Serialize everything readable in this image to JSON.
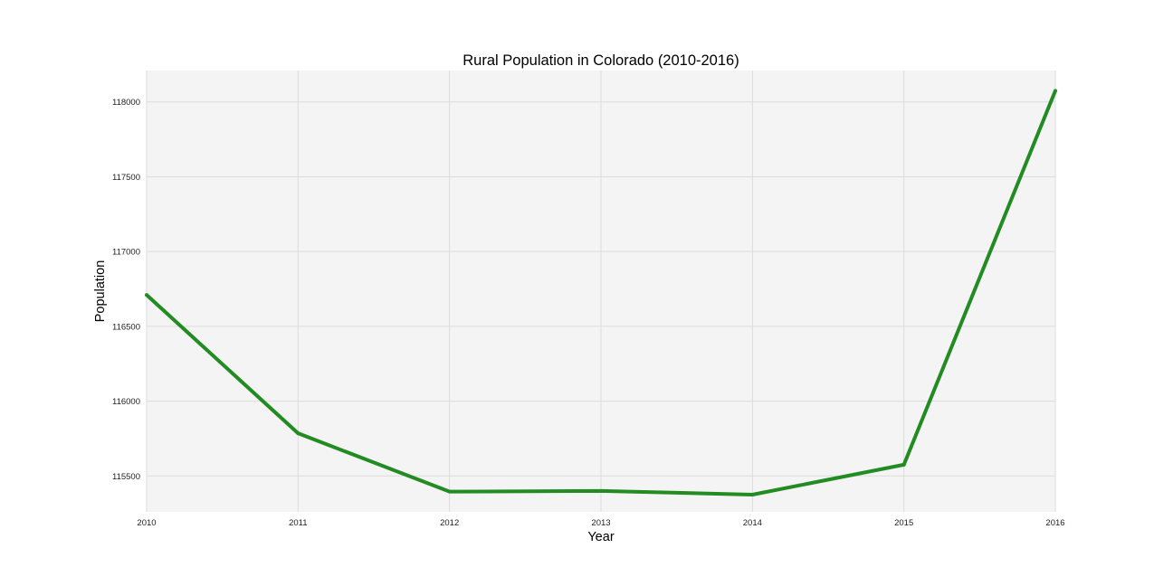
{
  "chart_data": {
    "type": "line",
    "title": "Rural Population in Colorado (2010-2016)",
    "xlabel": "Year",
    "ylabel": "Population",
    "x": [
      2010,
      2011,
      2012,
      2013,
      2014,
      2015,
      2016
    ],
    "series": [
      {
        "values": [
          116710,
          115785,
          115395,
          115400,
          115375,
          115575,
          118075
        ]
      }
    ],
    "xlim": [
      2010,
      2016
    ],
    "ylim": [
      115260,
      118210
    ],
    "x_ticks": [
      "2010",
      "2011",
      "2012",
      "2013",
      "2014",
      "2015",
      "2016"
    ],
    "y_ticks": [
      "115500",
      "116000",
      "116500",
      "117000",
      "117500",
      "118000"
    ],
    "grid": true,
    "line_color": "#228b22",
    "plot_background": "#f4f4f4",
    "grid_color": "#dcdcdc"
  }
}
